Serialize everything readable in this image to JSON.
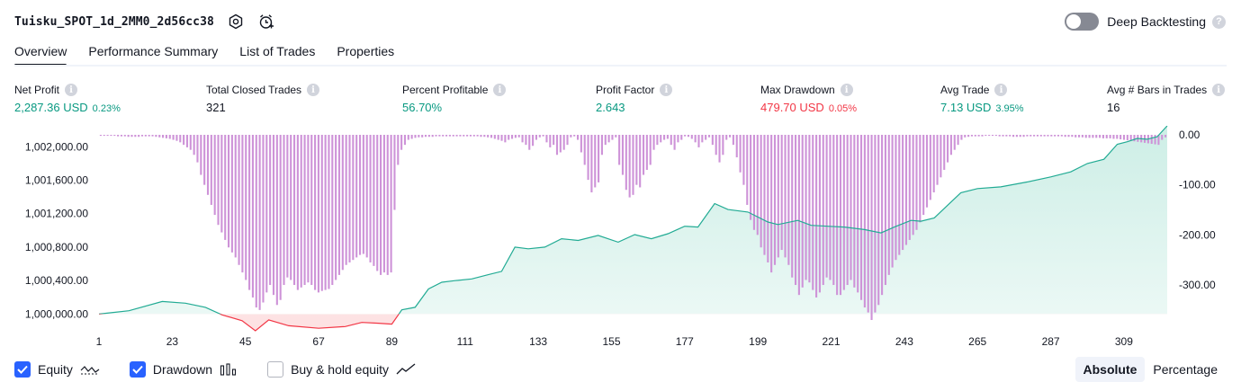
{
  "header": {
    "title": "Tuisku_SPOT_1d_2MM0_2d56cc38"
  },
  "deep_backtesting": {
    "label": "Deep Backtesting",
    "enabled": false,
    "help": "?"
  },
  "tabs": [
    {
      "label": "Overview",
      "active": true
    },
    {
      "label": "Performance Summary",
      "active": false
    },
    {
      "label": "List of Trades",
      "active": false
    },
    {
      "label": "Properties",
      "active": false
    }
  ],
  "metrics": [
    {
      "label": "Net Profit",
      "value": "2,287.36 USD",
      "pct": "0.23%",
      "tone": "green"
    },
    {
      "label": "Total Closed Trades",
      "value": "321",
      "pct": "",
      "tone": "dark"
    },
    {
      "label": "Percent Profitable",
      "value": "56.70%",
      "pct": "",
      "tone": "green"
    },
    {
      "label": "Profit Factor",
      "value": "2.643",
      "pct": "",
      "tone": "green"
    },
    {
      "label": "Max Drawdown",
      "value": "479.70 USD",
      "pct": "0.05%",
      "tone": "red"
    },
    {
      "label": "Avg Trade",
      "value": "7.13 USD",
      "pct": "3.95%",
      "tone": "green"
    },
    {
      "label": "Avg # Bars in Trades",
      "value": "16",
      "pct": "",
      "tone": "dark"
    }
  ],
  "info_glyph": "i",
  "chart_data": {
    "type": "area",
    "x_ticks": [
      "1",
      "23",
      "45",
      "67",
      "89",
      "111",
      "133",
      "155",
      "177",
      "199",
      "221",
      "243",
      "265",
      "287",
      "309"
    ],
    "left_axis_ticks": [
      "1,002,000.00",
      "1,001,600.00",
      "1,001,200.00",
      "1,000,800.00",
      "1,000,400.00",
      "1,000,000.00"
    ],
    "left_axis_values": [
      1002000,
      1001600,
      1001200,
      1000800,
      1000400,
      1000000
    ],
    "right_axis_ticks": [
      "0.00",
      "-100.00",
      "-200.00",
      "-300.00"
    ],
    "right_axis_values": [
      0,
      -100,
      -200,
      -300
    ],
    "x_range": [
      1,
      322
    ],
    "equity_range": [
      999800,
      1002250
    ],
    "drawdown_range": [
      -370,
      0
    ],
    "equity": [
      [
        1,
        1000000
      ],
      [
        10,
        1000040
      ],
      [
        20,
        1000150
      ],
      [
        27,
        1000130
      ],
      [
        33,
        1000080
      ],
      [
        38,
        999990
      ],
      [
        44,
        999920
      ],
      [
        48,
        999800
      ],
      [
        52,
        999930
      ],
      [
        58,
        999860
      ],
      [
        67,
        999830
      ],
      [
        75,
        999850
      ],
      [
        80,
        999900
      ],
      [
        85,
        999890
      ],
      [
        89,
        999880
      ],
      [
        92,
        1000050
      ],
      [
        96,
        1000080
      ],
      [
        100,
        1000300
      ],
      [
        104,
        1000380
      ],
      [
        108,
        1000400
      ],
      [
        113,
        1000420
      ],
      [
        118,
        1000470
      ],
      [
        122,
        1000510
      ],
      [
        126,
        1000800
      ],
      [
        130,
        1000780
      ],
      [
        135,
        1000800
      ],
      [
        140,
        1000900
      ],
      [
        145,
        1000880
      ],
      [
        151,
        1000940
      ],
      [
        157,
        1000860
      ],
      [
        162,
        1000950
      ],
      [
        167,
        1000900
      ],
      [
        172,
        1000960
      ],
      [
        177,
        1001050
      ],
      [
        181,
        1001040
      ],
      [
        186,
        1001320
      ],
      [
        190,
        1001250
      ],
      [
        196,
        1001220
      ],
      [
        202,
        1001100
      ],
      [
        205,
        1001070
      ],
      [
        211,
        1001120
      ],
      [
        215,
        1001060
      ],
      [
        220,
        1001050
      ],
      [
        225,
        1001040
      ],
      [
        231,
        1001010
      ],
      [
        236,
        1000970
      ],
      [
        240,
        1001040
      ],
      [
        245,
        1001120
      ],
      [
        248,
        1001110
      ],
      [
        252,
        1001150
      ],
      [
        256,
        1001300
      ],
      [
        260,
        1001450
      ],
      [
        265,
        1001500
      ],
      [
        272,
        1001520
      ],
      [
        280,
        1001580
      ],
      [
        287,
        1001640
      ],
      [
        293,
        1001700
      ],
      [
        298,
        1001800
      ],
      [
        303,
        1001850
      ],
      [
        307,
        1002030
      ],
      [
        310,
        1002060
      ],
      [
        313,
        1002100
      ],
      [
        316,
        1002090
      ],
      [
        319,
        1002120
      ],
      [
        322,
        1002250
      ]
    ],
    "drawdown": [
      -2,
      -2,
      -2,
      -2,
      -2,
      -3,
      -3,
      -3,
      -4,
      -4,
      -4,
      -4,
      -3,
      -3,
      -3,
      -3,
      -4,
      -5,
      -6,
      -7,
      -8,
      -10,
      -12,
      -15,
      -20,
      -25,
      -30,
      -40,
      -55,
      -80,
      -100,
      -120,
      -140,
      -160,
      -180,
      -195,
      -210,
      -225,
      -235,
      -245,
      -260,
      -275,
      -290,
      -310,
      -325,
      -345,
      -350,
      -335,
      -315,
      -300,
      -320,
      -340,
      -330,
      -300,
      -285,
      -290,
      -300,
      -310,
      -305,
      -300,
      -295,
      -300,
      -310,
      -315,
      -312,
      -310,
      -308,
      -300,
      -290,
      -280,
      -270,
      -260,
      -255,
      -250,
      -245,
      -240,
      -238,
      -245,
      -255,
      -262,
      -272,
      -280,
      -275,
      -280,
      -275,
      -150,
      -60,
      -30,
      -20,
      -10,
      -8,
      -6,
      -5,
      -5,
      -4,
      -4,
      -4,
      -3,
      -3,
      -3,
      -3,
      -3,
      -3,
      -3,
      -3,
      -3,
      -3,
      -3,
      -3,
      -3,
      -4,
      -4,
      -5,
      -6,
      -8,
      -10,
      -12,
      -15,
      -10,
      -8,
      -6,
      -5,
      -15,
      -20,
      -30,
      -22,
      -10,
      -5,
      -3,
      -15,
      -25,
      -20,
      -40,
      -35,
      -30,
      -20,
      -5,
      -3,
      -10,
      -35,
      -60,
      -90,
      -115,
      -105,
      -95,
      -40,
      -20,
      -15,
      -10,
      -5,
      -60,
      -80,
      -110,
      -125,
      -120,
      -100,
      -105,
      -80,
      -70,
      -60,
      -30,
      -20,
      -15,
      -10,
      -8,
      -20,
      -30,
      -15,
      -10,
      -3,
      -4,
      -8,
      -15,
      -25,
      -15,
      -10,
      -5,
      -20,
      -40,
      -55,
      -40,
      -10,
      -5,
      -20,
      -45,
      -75,
      -100,
      -140,
      -170,
      -190,
      -200,
      -225,
      -240,
      -255,
      -275,
      -260,
      -245,
      -230,
      -245,
      -260,
      -285,
      -300,
      -320,
      -305,
      -290,
      -295,
      -310,
      -325,
      -315,
      -300,
      -285,
      -290,
      -300,
      -320,
      -320,
      -310,
      -300,
      -290,
      -305,
      -315,
      -330,
      -345,
      -355,
      -370,
      -355,
      -340,
      -320,
      -300,
      -280,
      -265,
      -250,
      -240,
      -230,
      -220,
      -210,
      -200,
      -190,
      -175,
      -160,
      -145,
      -130,
      -115,
      -100,
      -85,
      -70,
      -55,
      -40,
      -30,
      -20,
      -10,
      -5,
      -4,
      -3,
      -3,
      -3,
      -3,
      -2,
      -2,
      -2,
      -2,
      -3,
      -3,
      -3,
      -3,
      -4,
      -4,
      -4,
      -4,
      -3,
      -3,
      -3,
      -3,
      -3,
      -3,
      -3,
      -3,
      -3,
      -3,
      -3,
      -4,
      -4,
      -4,
      -5,
      -5,
      -5,
      -6,
      -6,
      -6,
      -6,
      -6,
      -7,
      -7,
      -7,
      -8,
      -8,
      -9,
      -10,
      -11,
      -12,
      -13,
      -14,
      -15,
      -16,
      -17,
      -18,
      -19,
      -20,
      -10,
      -5
    ],
    "colors": {
      "equity_line": "#22ab94",
      "equity_fill": "#cdeee6",
      "loss_line": "#f23645",
      "loss_fill": "#fde1e2",
      "drawdown_bar": "#ce93d8",
      "drawdown_bar_overlap": "#9fa8da",
      "axis_text": "#131722"
    }
  },
  "legend": [
    {
      "label": "Equity",
      "checked": true,
      "glyph": "equity-wave-icon"
    },
    {
      "label": "Drawdown",
      "checked": true,
      "glyph": "drawdown-bars-icon"
    },
    {
      "label": "Buy & hold equity",
      "checked": false,
      "glyph": "buy-hold-line-icon"
    }
  ],
  "scale_toggle": [
    {
      "label": "Absolute",
      "active": true
    },
    {
      "label": "Percentage",
      "active": false
    }
  ]
}
